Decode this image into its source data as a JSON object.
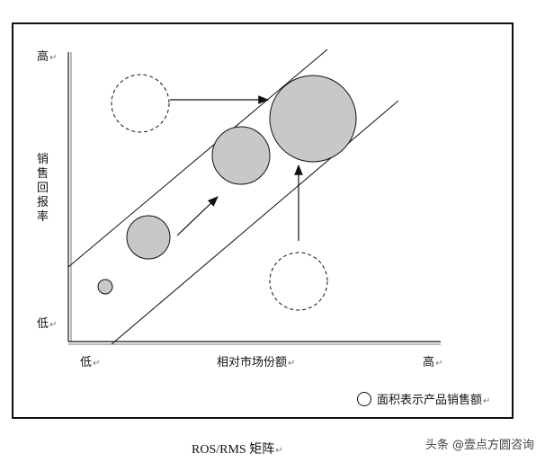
{
  "diagram": {
    "y_axis": {
      "high": "高",
      "low": "低",
      "title": "销售回报率"
    },
    "x_axis": {
      "low": "低",
      "title": "相对市场份额",
      "high": "高"
    },
    "legend": {
      "text": "面积表示产品销售额"
    },
    "caption": "ROS/RMS 矩阵",
    "paragraph_mark": "↵"
  },
  "watermark": "头条 @壹点方圆咨询",
  "colors": {
    "bubble_fill": "#c8c8c8",
    "stroke": "#111111"
  }
}
